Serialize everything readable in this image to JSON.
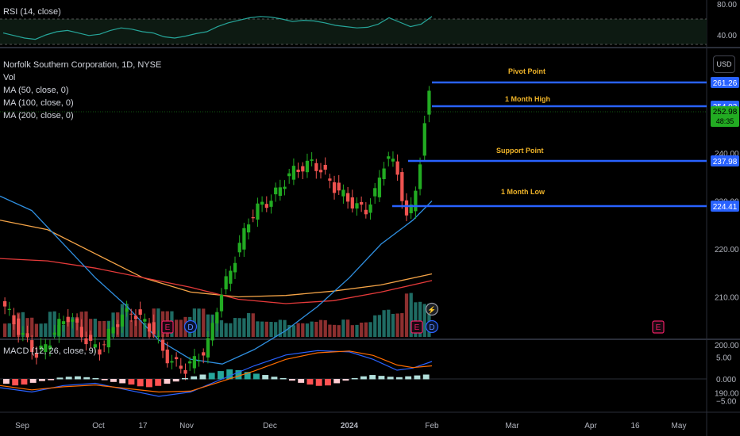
{
  "rsi": {
    "label": "RSI (14, close)",
    "ticks": [
      "80.00",
      "40.00"
    ]
  },
  "legend": {
    "symbol": "Norfolk Southern Corporation, 1D, NYSE",
    "vol": "Vol",
    "ma50": "MA (50, close, 0)",
    "ma100": "MA (100, close, 0)",
    "ma200": "MA (200, close, 0)"
  },
  "currency": "USD",
  "macd": {
    "label": "MACD (12, 26, close, 9)",
    "ticks": [
      "5.00",
      "0.000",
      "−5.00"
    ]
  },
  "levels": {
    "pivot": {
      "name": "Pivot Point",
      "value": "261.26"
    },
    "month_high": {
      "name": "1 Month High",
      "value": "254.03"
    },
    "support": {
      "name": "Support Point",
      "value": "237.98"
    },
    "month_low": {
      "name": "1 Month Low",
      "value": "224.41"
    }
  },
  "last_price": {
    "value": "252.98",
    "countdown": "48:35"
  },
  "colors": {
    "up": "#26a69a",
    "upbar": "#22ab22",
    "down": "#ef5350",
    "level": "#2962ff",
    "ma50": "#2f8fe0",
    "ma100": "#f5a447",
    "ma200": "#e53a3a"
  },
  "event_markers": [
    "E",
    "D",
    "E",
    "D",
    "E"
  ],
  "chart_data": {
    "type": "candlestick",
    "price_axis": {
      "ticks": [
        240,
        230,
        220,
        210,
        200,
        190
      ],
      "tick_labels": [
        "240.00",
        "230.00",
        "220.00",
        "210.00",
        "200.00",
        "190.00"
      ]
    },
    "time_axis": {
      "labels": [
        "Sep",
        "Oct",
        "17",
        "Nov",
        "Dec",
        "2024",
        "Feb",
        "Mar",
        "Apr",
        "16",
        "May"
      ]
    },
    "close_trajectory": [
      208,
      204,
      201,
      198,
      200,
      204,
      206,
      203,
      200,
      199,
      203,
      206,
      207,
      205,
      203,
      198,
      196,
      195,
      197,
      199,
      208,
      214,
      220,
      226,
      229,
      230,
      233,
      236,
      237,
      238,
      236,
      233,
      231,
      229,
      228,
      232,
      240,
      236,
      225,
      236,
      252
    ],
    "levels": [
      261.26,
      254.03,
      237.98,
      224.41
    ],
    "last_close": 252.98
  }
}
